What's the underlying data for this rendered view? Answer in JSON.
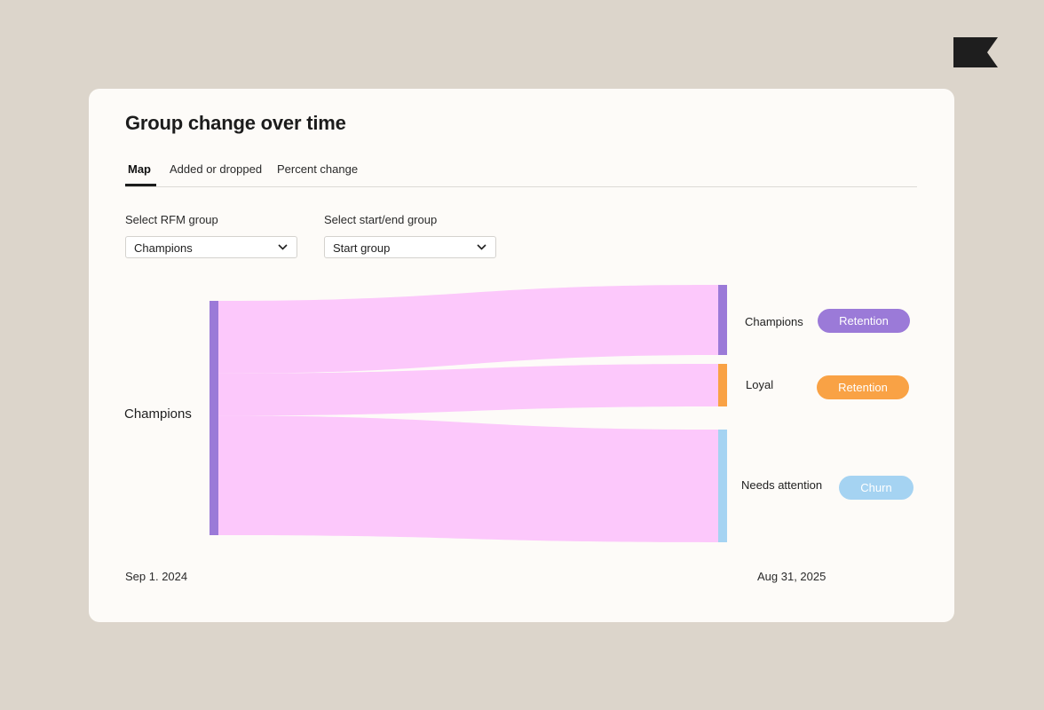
{
  "brand": {
    "logo_icon": "bookmark-flag-logo",
    "logo_color": "#1e1e1e"
  },
  "card": {
    "title": "Group change over time"
  },
  "tabs": [
    {
      "label": "Map",
      "active": true
    },
    {
      "label": "Added or dropped",
      "active": false
    },
    {
      "label": "Percent change",
      "active": false
    }
  ],
  "filters": {
    "rfm": {
      "label": "Select RFM group",
      "value": "Champions"
    },
    "group": {
      "label": "Select start/end group",
      "value": "Start group"
    }
  },
  "chart_data": {
    "type": "sankey",
    "source": {
      "name": "Champions",
      "color": "#9b7ad8"
    },
    "targets": [
      {
        "name": "Champions",
        "share": 0.31,
        "color": "#9b7ad8",
        "status": "Retention",
        "status_color": "#9b7ad8"
      },
      {
        "name": "Loyal",
        "share": 0.18,
        "color": "#f9a245",
        "status": "Retention",
        "status_color": "#f9a245"
      },
      {
        "name": "Needs attention",
        "share": 0.51,
        "color": "#a5d3f2",
        "status": "Churn",
        "status_color": "#a5d3f2"
      }
    ],
    "flow_color": "#fcc8fb",
    "start_date": "Sep 1. 2024",
    "end_date": "Aug 31, 2025"
  }
}
